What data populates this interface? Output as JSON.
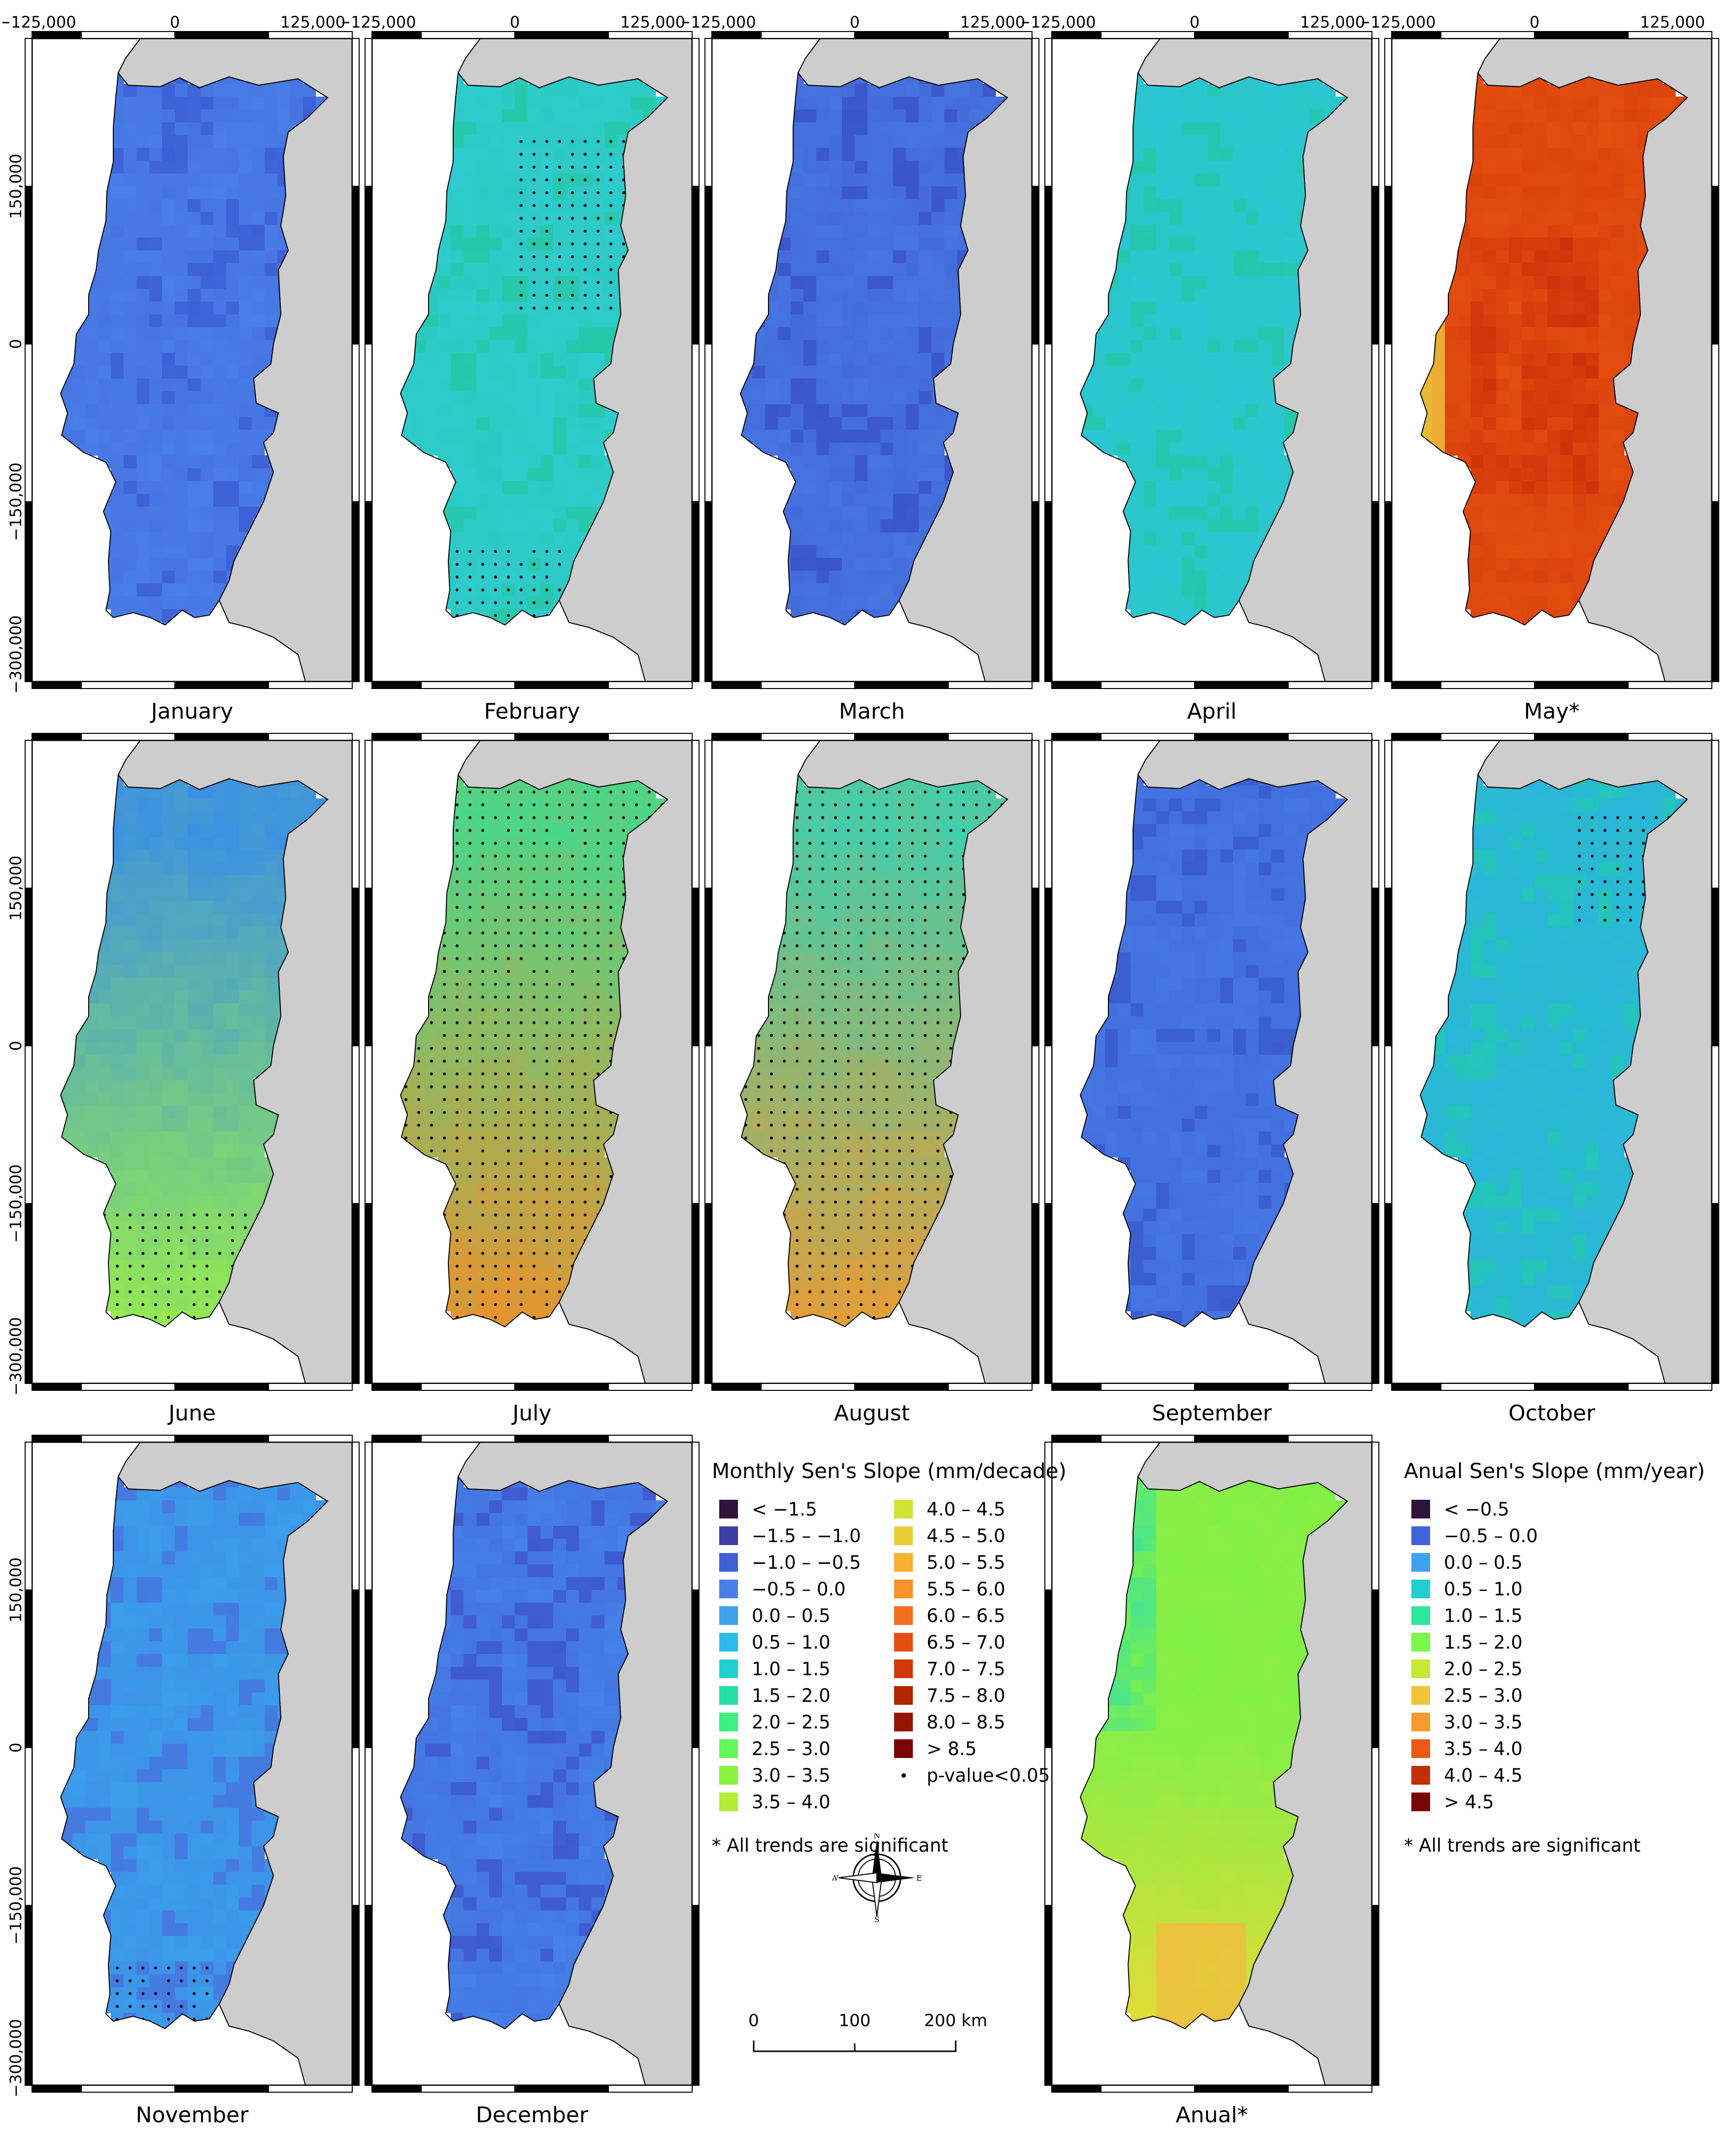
{
  "figure": {
    "panels": [
      {
        "id": "jan",
        "caption": "January",
        "scheme": "uniform",
        "base": "#4a7fe8",
        "variant": "#3d5fd6",
        "significant": "none"
      },
      {
        "id": "feb",
        "caption": "February",
        "scheme": "uniform",
        "base": "#2fcbd0",
        "variant": "#26c8a9",
        "significant": "scattered"
      },
      {
        "id": "mar",
        "caption": "March",
        "scheme": "uniform",
        "base": "#4676e2",
        "variant": "#3b55c8",
        "significant": "none"
      },
      {
        "id": "apr",
        "caption": "April",
        "scheme": "uniform",
        "base": "#2cc6d6",
        "variant": "#25c7aa",
        "significant": "none"
      },
      {
        "id": "may",
        "caption": "May*",
        "scheme": "may",
        "base": "#e9560f",
        "variant": "#c7280a",
        "significant": "none"
      },
      {
        "id": "jun",
        "caption": "June",
        "scheme": "northsouth",
        "north": "#3a8fe6",
        "south": "#9af046",
        "significant": "south"
      },
      {
        "id": "jul",
        "caption": "July",
        "scheme": "northsouth",
        "north": "#46d88b",
        "south": "#f0902a",
        "significant": "all"
      },
      {
        "id": "aug",
        "caption": "August",
        "scheme": "northsouth",
        "north": "#3ccfb0",
        "south": "#f09a2e",
        "significant": "all"
      },
      {
        "id": "sep",
        "caption": "September",
        "scheme": "uniform",
        "base": "#4578e4",
        "variant": "#3a5bcf",
        "significant": "none"
      },
      {
        "id": "oct",
        "caption": "October",
        "scheme": "uniform",
        "base": "#2bb5dc",
        "variant": "#23c6b8",
        "significant": "northeast"
      },
      {
        "id": "nov",
        "caption": "November",
        "scheme": "uniform",
        "base": "#3aa0ec",
        "variant": "#4677e0",
        "significant": "southtip"
      },
      {
        "id": "dec",
        "caption": "December",
        "scheme": "uniform",
        "base": "#4682ea",
        "variant": "#3e58ce",
        "significant": "none"
      },
      {
        "id": "ann",
        "caption": "Anual*",
        "scheme": "annual",
        "base": "#9ae448",
        "variant": "#e4cf3a",
        "significant": "none"
      }
    ],
    "axis_ticks": {
      "x": [
        "−125,000",
        "0",
        "125,000"
      ],
      "y": [
        "150,000",
        "0",
        "−150,000",
        "−300,000"
      ]
    }
  },
  "monthly_legend": {
    "title": "Monthly Sen's Slope (mm/decade)",
    "items": [
      {
        "label": "< −1.5",
        "color": "#30123b"
      },
      {
        "label": "−1.5 – −1.0",
        "color": "#3b3fa3"
      },
      {
        "label": "−1.0 – −0.5",
        "color": "#3f5fd4"
      },
      {
        "label": "−0.5 – 0.0",
        "color": "#4a7fe8"
      },
      {
        "label": "0.0 – 0.5",
        "color": "#3ea1f0"
      },
      {
        "label": "0.5 – 1.0",
        "color": "#2bbceb"
      },
      {
        "label": "1.0 – 1.5",
        "color": "#22cfd0"
      },
      {
        "label": "1.5 – 2.0",
        "color": "#25dfa8"
      },
      {
        "label": "2.0 – 2.5",
        "color": "#3cf083"
      },
      {
        "label": "2.5 – 3.0",
        "color": "#62f75a"
      },
      {
        "label": "3.0 – 3.5",
        "color": "#8bf33e"
      },
      {
        "label": "3.5 – 4.0",
        "color": "#b2ee34"
      },
      {
        "label": "4.0 – 4.5",
        "color": "#d2e135"
      },
      {
        "label": "4.5 – 5.0",
        "color": "#ebcc37"
      },
      {
        "label": "5.0 – 5.5",
        "color": "#f8b132"
      },
      {
        "label": "5.5 – 6.0",
        "color": "#fa922a"
      },
      {
        "label": "6.0 – 6.5",
        "color": "#f26e1c"
      },
      {
        "label": "6.5 – 7.0",
        "color": "#e44f10"
      },
      {
        "label": "7.0 – 7.5",
        "color": "#d03808"
      },
      {
        "label": "7.5 – 8.0",
        "color": "#b42504"
      },
      {
        "label": "8.0 – 8.5",
        "color": "#961402"
      },
      {
        "label": "> 8.5",
        "color": "#7a0403"
      }
    ],
    "pvalue_label": "p-value<0.05",
    "note": "* All trends are significant"
  },
  "annual_legend": {
    "title": "Anual Sen's Slope (mm/year)",
    "items": [
      {
        "label": "< −0.5",
        "color": "#30123b"
      },
      {
        "label": "−0.5 – 0.0",
        "color": "#4063d8"
      },
      {
        "label": "0.0 – 0.5",
        "color": "#3ea1f0"
      },
      {
        "label": "0.5 – 1.0",
        "color": "#22cfd0"
      },
      {
        "label": "1.0 – 1.5",
        "color": "#2ee89a"
      },
      {
        "label": "1.5 – 2.0",
        "color": "#7af84a"
      },
      {
        "label": "2.0 – 2.5",
        "color": "#c5e836"
      },
      {
        "label": "2.5 – 3.0",
        "color": "#efc63a"
      },
      {
        "label": "3.0 – 3.5",
        "color": "#fa9a2c"
      },
      {
        "label": "3.5 – 4.0",
        "color": "#ea5a14"
      },
      {
        "label": "4.0 – 4.5",
        "color": "#c22e06"
      },
      {
        "label": "> 4.5",
        "color": "#7a0403"
      }
    ],
    "note": "* All trends are significant"
  },
  "compass": {
    "n": "N",
    "s": "S",
    "e": "E",
    "w": "W"
  },
  "scale_bar": {
    "labels": [
      "0",
      "100",
      "200 km"
    ]
  },
  "colors": {
    "land_gray": "#cdcdcd",
    "sea": "#ffffff",
    "outline": "#000000"
  }
}
